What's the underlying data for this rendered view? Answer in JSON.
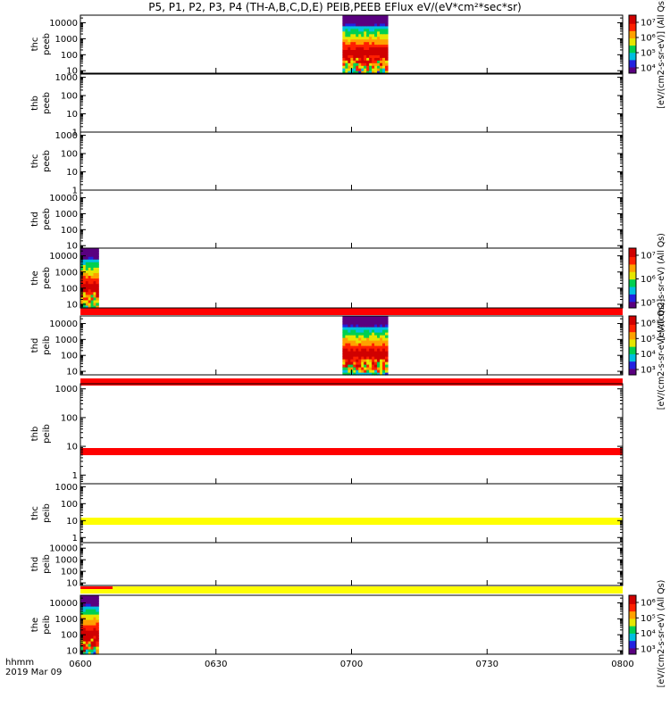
{
  "title": "P5, P1, P2, P3, P4 (TH-A,B,C,D,E) PEIB,PEEB EFlux eV/(eV*cm²*sec*sr)",
  "time_axis_label": "hhmm",
  "date_label": "2019 Mar 09",
  "colors": {
    "colormap": [
      "#5a0080",
      "#2222e0",
      "#00bfe0",
      "#00d050",
      "#e6e600",
      "#ffa000",
      "#ff2000",
      "#d00000"
    ],
    "red_bar": "#ff0000",
    "yellow_bar": "#ffff00"
  },
  "chart_data": {
    "type": "heatmap",
    "x_ticks": [
      "0600",
      "0630",
      "0700",
      "0730",
      "0800"
    ],
    "x_range": [
      "0600",
      "0800"
    ],
    "panels": [
      {
        "ylabel": [
          "thc",
          "peeb"
        ],
        "yticks": [
          "10",
          "100",
          "1000",
          "10000"
        ],
        "ylim": [
          7,
          30000
        ],
        "log": true,
        "data_intervals": [
          [
            "0658",
            "0708"
          ]
        ],
        "colorbar": {
          "ticks": [
            "10⁷",
            "10⁶",
            "10⁵",
            "10⁴"
          ],
          "label": "[eV/(cm2-s-sr-eV)] (All Qs)"
        }
      },
      {
        "ylabel": [
          "thb",
          "peeb"
        ],
        "yticks": [
          "1",
          "10",
          "100",
          "1000"
        ],
        "ylim": [
          1,
          1500
        ],
        "log": true,
        "data_intervals": []
      },
      {
        "ylabel": [
          "thc",
          "peeb"
        ],
        "yticks": [
          "1",
          "10",
          "100",
          "1000"
        ],
        "ylim": [
          1,
          1500
        ],
        "log": true,
        "data_intervals": []
      },
      {
        "ylabel": [
          "thd",
          "peeb"
        ],
        "yticks": [
          "10",
          "100",
          "1000",
          "10000"
        ],
        "ylim": [
          7,
          30000
        ],
        "log": true,
        "data_intervals": []
      },
      {
        "ylabel": [
          "the",
          "peeb"
        ],
        "yticks": [
          "10",
          "100",
          "1000",
          "10000"
        ],
        "ylim": [
          6,
          30000
        ],
        "log": true,
        "data_intervals": [
          [
            "0600",
            "0604"
          ]
        ],
        "colorbar": {
          "ticks": [
            "10⁷",
            "10⁶",
            "10⁵"
          ],
          "label": "[eV/(cm2-s-sr-eV) (All Qs)"
        }
      },
      {
        "ylabel": [
          "thd",
          "peib"
        ],
        "yticks": [
          "10",
          "100",
          "1000",
          "10000"
        ],
        "ylim": [
          6,
          30000
        ],
        "log": true,
        "data_intervals": [
          [
            "0658",
            "0708"
          ]
        ],
        "colorbar": {
          "ticks": [
            "10⁶",
            "10⁵",
            "10⁴",
            "10³"
          ],
          "label": "[eV/(cm2-s-sr-eV) (All Qs)]"
        }
      },
      {
        "ylabel": [
          "thb",
          "peib"
        ],
        "yticks": [
          "1",
          "10",
          "100",
          "1000"
        ],
        "ylim": [
          0.5,
          1500
        ],
        "log": true,
        "data_intervals": []
      },
      {
        "ylabel": [
          "thc",
          "peib"
        ],
        "yticks": [
          "1",
          "10",
          "100",
          "1000"
        ],
        "ylim": [
          0.5,
          1500
        ],
        "log": true,
        "data_intervals": []
      },
      {
        "ylabel": [
          "thd",
          "peib"
        ],
        "yticks": [
          "10",
          "100",
          "1000",
          "10000"
        ],
        "ylim": [
          6,
          30000
        ],
        "log": true,
        "data_intervals": []
      },
      {
        "ylabel": [
          "the",
          "peib"
        ],
        "yticks": [
          "10",
          "100",
          "1000",
          "10000"
        ],
        "ylim": [
          6,
          30000
        ],
        "log": true,
        "data_intervals": [
          [
            "0600",
            "0604"
          ]
        ],
        "colorbar": {
          "ticks": [
            "10⁶",
            "10⁵",
            "10⁴",
            "10³"
          ],
          "label": "[eV/(cm2-s-sr-eV) (All Qs)"
        }
      }
    ],
    "status_bars": [
      {
        "after_panel": 5,
        "color": "red",
        "range": [
          "0600",
          "0800"
        ]
      },
      {
        "after_panel": 6,
        "color": "red",
        "range": [
          "0600",
          "0800"
        ]
      },
      {
        "after_panel": 7,
        "color": "red",
        "range": [
          "0600",
          "0800"
        ]
      },
      {
        "after_panel": 8,
        "color": "yellow",
        "range": [
          "0600",
          "0800"
        ]
      },
      {
        "after_panel": 9,
        "color": "yellow",
        "range": [
          "0600",
          "0800"
        ]
      }
    ]
  }
}
